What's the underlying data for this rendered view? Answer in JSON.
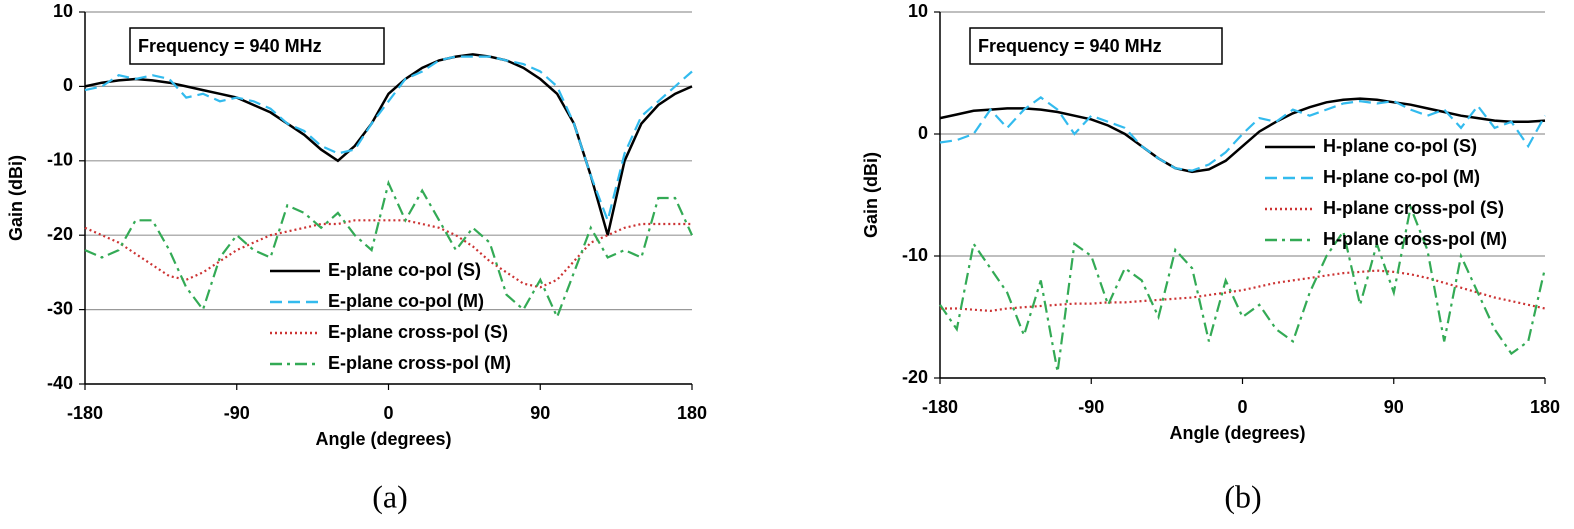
{
  "chart_data": [
    {
      "type": "line",
      "annotation": "Frequency = 940 MHz",
      "caption": "(a)",
      "xlabel": "Angle (degrees)",
      "ylabel": "Gain (dBi)",
      "xlim": [
        -180,
        180
      ],
      "xticks": [
        -180,
        -90,
        0,
        90,
        180
      ],
      "ylim": [
        -40,
        10
      ],
      "yticks": [
        -40,
        -30,
        -20,
        -10,
        0,
        10
      ],
      "grid": true,
      "legend": "lower center",
      "x": [
        -180,
        -170,
        -160,
        -150,
        -140,
        -130,
        -120,
        -110,
        -100,
        -90,
        -80,
        -70,
        -60,
        -50,
        -40,
        -30,
        -20,
        -10,
        0,
        10,
        20,
        30,
        40,
        50,
        60,
        70,
        80,
        90,
        100,
        110,
        120,
        130,
        140,
        150,
        160,
        170,
        180
      ],
      "series": [
        {
          "name": "E-plane co-pol (S)",
          "color": "#000000",
          "style": "solid",
          "values": [
            0,
            0.5,
            0.8,
            1,
            0.8,
            0.5,
            0,
            -0.5,
            -1,
            -1.5,
            -2.5,
            -3.5,
            -5,
            -6.5,
            -8.5,
            -10,
            -8,
            -5,
            -1,
            1,
            2.5,
            3.5,
            4,
            4.3,
            4,
            3.5,
            2.5,
            1,
            -1,
            -5,
            -12,
            -20,
            -10,
            -5,
            -2.5,
            -1,
            0
          ]
        },
        {
          "name": "E-plane co-pol (M)",
          "color": "#33bbee",
          "style": "dashed",
          "values": [
            -0.5,
            0,
            1.5,
            1,
            1.5,
            1,
            -1.5,
            -1,
            -2,
            -1.5,
            -2,
            -3,
            -5,
            -6,
            -8,
            -9,
            -8.5,
            -5,
            -2,
            1,
            2,
            3.5,
            4,
            4,
            4,
            3.5,
            3,
            2,
            0,
            -5,
            -12,
            -18,
            -9,
            -4,
            -2,
            0,
            2
          ]
        },
        {
          "name": "E-plane cross-pol (S)",
          "color": "#cc3333",
          "style": "dotted",
          "values": [
            -19,
            -20,
            -21,
            -22.5,
            -24,
            -25.5,
            -26,
            -25,
            -23.5,
            -22,
            -21,
            -20,
            -19.5,
            -19,
            -18.5,
            -18.5,
            -18,
            -18,
            -18,
            -18,
            -18.5,
            -19,
            -20,
            -21.5,
            -23.5,
            -25,
            -26.5,
            -27,
            -26,
            -23.5,
            -21,
            -20,
            -19,
            -18.5,
            -18.5,
            -18.5,
            -18.5
          ]
        },
        {
          "name": "E-plane cross-pol (M)",
          "color": "#33aa55",
          "style": "dashdot",
          "values": [
            -22,
            -23,
            -22,
            -18,
            -18,
            -22,
            -27,
            -30,
            -23,
            -20,
            -22,
            -23,
            -16,
            -17,
            -19,
            -17,
            -20,
            -22,
            -13,
            -18,
            -14,
            -18,
            -22,
            -19,
            -21,
            -28,
            -30,
            -26,
            -31,
            -25,
            -19,
            -23,
            -22,
            -23,
            -15,
            -15,
            -20
          ]
        }
      ]
    },
    {
      "type": "line",
      "annotation": "Frequency = 940 MHz",
      "caption": "(b)",
      "xlabel": "Angle (degrees)",
      "ylabel": "Gain (dBi)",
      "xlim": [
        -180,
        180
      ],
      "xticks": [
        -180,
        -90,
        0,
        90,
        180
      ],
      "ylim": [
        -20,
        10
      ],
      "yticks": [
        -20,
        -10,
        0,
        10
      ],
      "grid": true,
      "legend": "center right",
      "x": [
        -180,
        -170,
        -160,
        -150,
        -140,
        -130,
        -120,
        -110,
        -100,
        -90,
        -80,
        -70,
        -60,
        -50,
        -40,
        -30,
        -20,
        -10,
        0,
        10,
        20,
        30,
        40,
        50,
        60,
        70,
        80,
        90,
        100,
        110,
        120,
        130,
        140,
        150,
        160,
        170,
        180
      ],
      "series": [
        {
          "name": "H-plane co-pol (S)",
          "color": "#000000",
          "style": "solid",
          "values": [
            1.3,
            1.6,
            1.9,
            2,
            2.1,
            2.1,
            2,
            1.8,
            1.5,
            1.2,
            0.7,
            0,
            -1,
            -2,
            -2.8,
            -3.1,
            -2.9,
            -2.2,
            -1,
            0.2,
            1,
            1.7,
            2.2,
            2.6,
            2.8,
            2.9,
            2.8,
            2.6,
            2.4,
            2.1,
            1.8,
            1.5,
            1.3,
            1.1,
            1,
            1,
            1.1
          ]
        },
        {
          "name": "H-plane co-pol (M)",
          "color": "#33bbee",
          "style": "dashed",
          "values": [
            -0.7,
            -0.5,
            0,
            2,
            0.5,
            2,
            3,
            2,
            0,
            1.5,
            1,
            0.5,
            -1,
            -2,
            -2.8,
            -3,
            -2.5,
            -1.5,
            0,
            1.3,
            1,
            2,
            1.5,
            2,
            2.5,
            2.7,
            2.5,
            2.7,
            2,
            1.5,
            2,
            0.5,
            2.3,
            0.5,
            1,
            -1,
            1.5
          ]
        },
        {
          "name": "H-plane cross-pol (S)",
          "color": "#cc3333",
          "style": "dotted",
          "values": [
            -14.3,
            -14.3,
            -14.4,
            -14.5,
            -14.3,
            -14.2,
            -14.1,
            -14,
            -13.9,
            -13.9,
            -13.8,
            -13.8,
            -13.7,
            -13.6,
            -13.5,
            -13.4,
            -13.2,
            -13,
            -12.8,
            -12.5,
            -12.2,
            -12,
            -11.8,
            -11.6,
            -11.4,
            -11.3,
            -11.2,
            -11.3,
            -11.5,
            -11.8,
            -12.2,
            -12.6,
            -13,
            -13.4,
            -13.7,
            -14,
            -14.3
          ]
        },
        {
          "name": "H-plane cross-pol (M)",
          "color": "#33aa55",
          "style": "dashdot",
          "values": [
            -14,
            -16,
            -9,
            -11,
            -13,
            -16.5,
            -12,
            -19.5,
            -9,
            -10,
            -14,
            -11,
            -12,
            -15,
            -9.5,
            -11,
            -17,
            -12,
            -15,
            -14,
            -16,
            -17,
            -13,
            -10,
            -8,
            -14,
            -9,
            -13,
            -6,
            -9.5,
            -17,
            -10,
            -13,
            -16,
            -18,
            -17,
            -11
          ]
        }
      ]
    }
  ]
}
